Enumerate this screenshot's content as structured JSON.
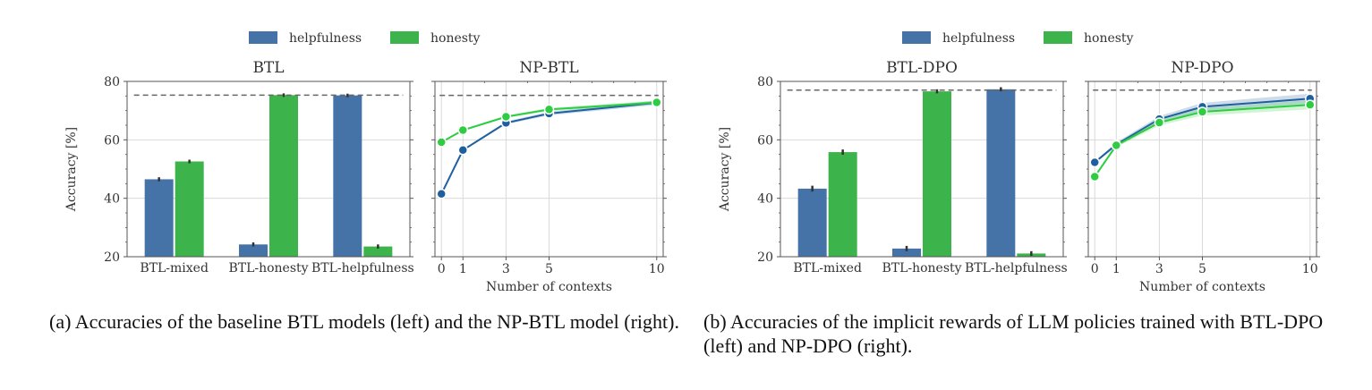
{
  "colors": {
    "helpfulness": "#4572a7",
    "helpfulness_dark": "#1f5f9f",
    "honesty": "#3cb44b",
    "honesty_line": "#2ecc40",
    "dashed": "#666666",
    "grid": "#d9d9d9",
    "axis": "#555555"
  },
  "legend": [
    {
      "label": "helpfulness"
    },
    {
      "label": "honesty"
    }
  ],
  "captions": {
    "a": "(a)  Accuracies of the baseline BTL models (left) and the NP-BTL model (right).",
    "b": "(b)  Accuracies of the implicit rewards of LLM policies trained with BTL-DPO (left) and NP-DPO (right)."
  },
  "chart_data": [
    {
      "id": "btl",
      "type": "bar",
      "title": "BTL",
      "ylabel": "Accuracy [%]",
      "xlabel": "",
      "ylim": [
        20,
        80
      ],
      "yticks": [
        20,
        40,
        60,
        80
      ],
      "grid": true,
      "categories": [
        "BTL-mixed",
        "BTL-honesty",
        "BTL-helpfulness"
      ],
      "series": [
        {
          "name": "helpfulness",
          "values": [
            46.5,
            24.2,
            75.2
          ],
          "err": [
            0.7,
            0.7,
            0.6
          ]
        },
        {
          "name": "honesty",
          "values": [
            52.6,
            75.3,
            23.5
          ],
          "err": [
            0.6,
            0.6,
            0.7
          ]
        }
      ],
      "reference_line": 75.3
    },
    {
      "id": "npbtl",
      "type": "line",
      "title": "NP-BTL",
      "ylabel": "",
      "xlabel": "Number of contexts",
      "ylim": [
        20,
        80
      ],
      "yticks": [
        20,
        40,
        60,
        80
      ],
      "xlim": [
        -0.3,
        10.3
      ],
      "xticks": [
        0,
        1,
        3,
        5,
        10
      ],
      "grid": true,
      "x": [
        0,
        1,
        3,
        5,
        10
      ],
      "series": [
        {
          "name": "helpfulness",
          "values": [
            41.5,
            56.5,
            65.8,
            69.0,
            72.7
          ],
          "band": 0.6
        },
        {
          "name": "honesty",
          "values": [
            59.2,
            63.3,
            67.9,
            70.4,
            72.8
          ],
          "band": 0.5
        }
      ],
      "reference_line": 75.2
    },
    {
      "id": "btldpo",
      "type": "bar",
      "title": "BTL-DPO",
      "ylabel": "Accuracy [%]",
      "xlabel": "",
      "ylim": [
        20,
        80
      ],
      "yticks": [
        20,
        40,
        60,
        80
      ],
      "grid": true,
      "categories": [
        "BTL-mixed",
        "BTL-honesty",
        "BTL-helpfulness"
      ],
      "series": [
        {
          "name": "helpfulness",
          "values": [
            43.3,
            22.8,
            77.3
          ],
          "err": [
            1.0,
            0.9,
            0.7
          ]
        },
        {
          "name": "honesty",
          "values": [
            55.8,
            76.6,
            21.1
          ],
          "err": [
            0.9,
            0.7,
            0.8
          ]
        }
      ],
      "reference_line": 77.0
    },
    {
      "id": "npdpo",
      "type": "line",
      "title": "NP-DPO",
      "ylabel": "",
      "xlabel": "Number of contexts",
      "ylim": [
        20,
        80
      ],
      "yticks": [
        20,
        40,
        60,
        80
      ],
      "xlim": [
        -0.3,
        10.3
      ],
      "xticks": [
        0,
        1,
        3,
        5,
        10
      ],
      "grid": true,
      "x": [
        0,
        1,
        3,
        5,
        10
      ],
      "series": [
        {
          "name": "helpfulness",
          "values": [
            52.3,
            58.4,
            67.1,
            71.3,
            74.1
          ],
          "band": 1.3
        },
        {
          "name": "honesty",
          "values": [
            47.4,
            58.1,
            65.9,
            69.6,
            72.0
          ],
          "band": 1.2
        }
      ],
      "reference_line": 77.0
    }
  ]
}
